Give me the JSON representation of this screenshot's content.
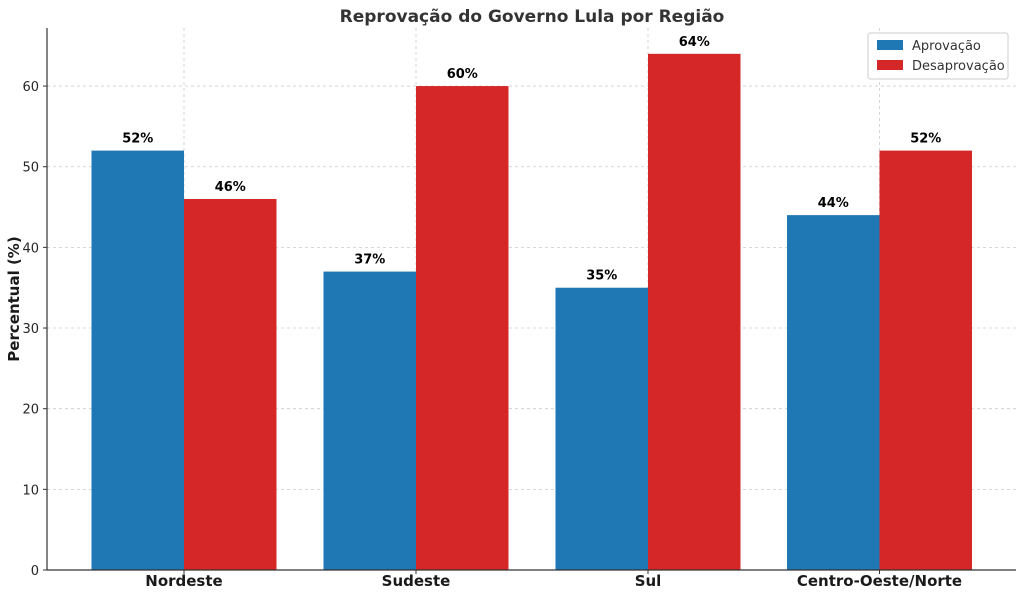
{
  "chart_data": {
    "type": "bar",
    "title": "Reprovação do Governo Lula por Região",
    "xlabel": "",
    "ylabel": "Percentual (%)",
    "categories": [
      "Nordeste",
      "Sudeste",
      "Sul",
      "Centro-Oeste/Norte"
    ],
    "series": [
      {
        "name": "Aprovação",
        "color": "#1f77b4",
        "values": [
          52,
          37,
          35,
          44
        ],
        "labels": [
          "52%",
          "37%",
          "35%",
          "44%"
        ]
      },
      {
        "name": "Desaprovação",
        "color": "#d62728",
        "values": [
          46,
          60,
          64,
          52
        ],
        "labels": [
          "46%",
          "60%",
          "64%",
          "52%"
        ]
      }
    ],
    "ylim": [
      0,
      67.2
    ],
    "yticks": [
      0,
      10,
      20,
      30,
      40,
      50,
      60
    ],
    "grid": true,
    "legend_position": "top-right"
  }
}
